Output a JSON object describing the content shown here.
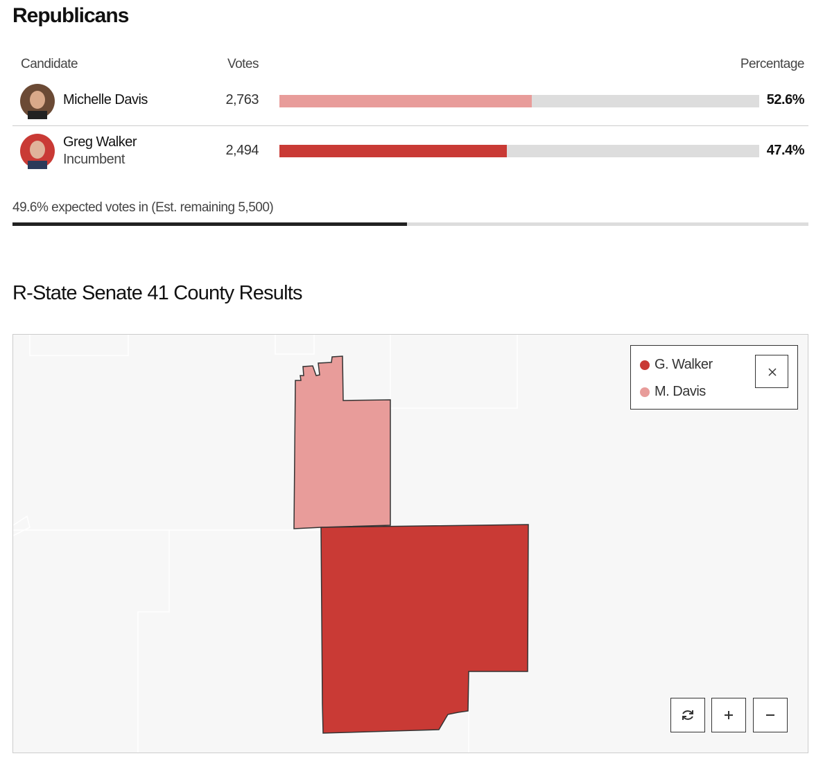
{
  "section_title": "Republicans",
  "table": {
    "headers": {
      "candidate": "Candidate",
      "votes": "Votes",
      "percentage": "Percentage"
    },
    "candidates": [
      {
        "name": "Michelle Davis",
        "votes": "2,763",
        "percentage": {
          "value": 52.6,
          "label": "52.6%"
        },
        "color": "#e89c9a"
      },
      {
        "name": "Greg Walker",
        "note": "Incumbent",
        "votes": "2,494",
        "percentage": {
          "value": 47.4,
          "label": "47.4%"
        },
        "color": "#c93a35"
      }
    ]
  },
  "expected": {
    "value": 49.6,
    "label": "49.6% expected votes in (Est. remaining 5,500)"
  },
  "map": {
    "title": "R-State Senate 41 County Results",
    "legend": [
      {
        "name": "G. Walker",
        "color": "#c93a35"
      },
      {
        "name": "M. Davis",
        "color": "#e89c9a"
      }
    ]
  }
}
